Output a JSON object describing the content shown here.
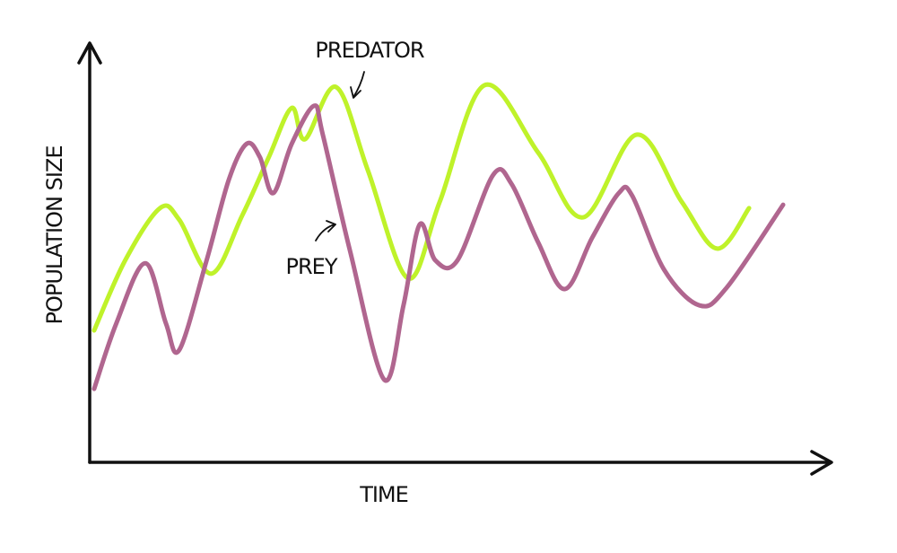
{
  "chart_data": {
    "type": "line",
    "y_label": "POPULATION SIZE",
    "x_label": "TIME",
    "xlim": [
      0,
      100
    ],
    "ylim": [
      0,
      100
    ],
    "series": [
      {
        "name": "PREDATOR",
        "color": "#bff22a",
        "x": [
          0.6,
          4.8,
          9.5,
          12.1,
          16.4,
          20.6,
          24.2,
          27.3,
          29.1,
          33.3,
          37.6,
          43.0,
          47.3,
          53.3,
          60.6,
          66.7,
          73.9,
          80.0,
          84.8,
          89.1
        ],
        "values": [
          31.6,
          48.4,
          60.9,
          58.1,
          45.2,
          59.1,
          73.1,
          84.9,
          77.4,
          89.9,
          69.9,
          44.1,
          62.4,
          90.3,
          74.2,
          58.7,
          78.5,
          62.4,
          51.2,
          60.9
        ]
      },
      {
        "name": "PREY",
        "color": "#b0668f",
        "x": [
          0.6,
          3.6,
          7.5,
          10.3,
          12.1,
          15.8,
          18.8,
          21.2,
          23.0,
          24.8,
          27.3,
          30.3,
          31.5,
          35.2,
          39.8,
          42.4,
          44.6,
          46.7,
          49.7,
          54.5,
          57.0,
          60.6,
          64.2,
          67.9,
          71.5,
          73.3,
          77.6,
          82.4,
          86.1,
          93.7
        ],
        "values": [
          17.6,
          33.3,
          47.7,
          33.3,
          26.9,
          48.4,
          67.7,
          76.3,
          73.1,
          64.5,
          76.3,
          85.4,
          78.5,
          50.5,
          19.8,
          37.6,
          57.0,
          48.4,
          48.4,
          68.8,
          66.7,
          52.7,
          41.5,
          53.8,
          64.5,
          63.9,
          46.2,
          37.6,
          41.9,
          61.7
        ]
      }
    ]
  }
}
